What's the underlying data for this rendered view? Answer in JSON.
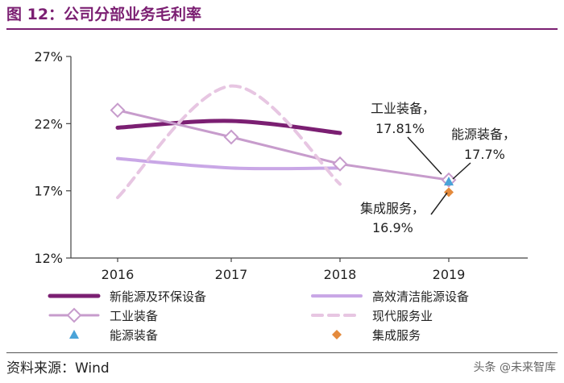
{
  "header": {
    "title": "图 12：公司分部业务毛利率"
  },
  "footer": {
    "source": "资料来源：Wind",
    "watermark": "头条 @未来智库"
  },
  "chart_data": {
    "type": "line",
    "x": [
      "2016",
      "2017",
      "2018",
      "2019"
    ],
    "ylim": [
      12,
      27
    ],
    "yticks": [
      "27%",
      "22%",
      "17%",
      "12%"
    ],
    "grid": false,
    "legend_position": "bottom",
    "series": [
      {
        "name": "新能源及环保设备",
        "values": [
          21.7,
          22.2,
          21.3,
          null
        ],
        "color": "#7b1f72"
      },
      {
        "name": "高效清洁能源设备",
        "values": [
          19.4,
          18.7,
          18.7,
          null
        ],
        "color": "#c9a7e6"
      },
      {
        "name": "工业装备",
        "values": [
          23.0,
          21.0,
          19.0,
          17.81
        ],
        "color": "#c79ccc"
      },
      {
        "name": "现代服务业",
        "values": [
          16.5,
          24.8,
          17.5,
          null
        ],
        "color": "#e7c6e2"
      },
      {
        "name": "能源装备",
        "values": [
          null,
          null,
          null,
          17.7
        ],
        "color": "#4aa3d8"
      },
      {
        "name": "集成服务",
        "values": [
          null,
          null,
          null,
          16.9
        ],
        "color": "#e48a3c"
      }
    ],
    "annotations": [
      {
        "line1": "工业装备，",
        "line2": "17.81%"
      },
      {
        "line1": "能源装备，",
        "line2": "17.7%"
      },
      {
        "line1": "集成服务，",
        "line2": "16.9%"
      }
    ]
  }
}
